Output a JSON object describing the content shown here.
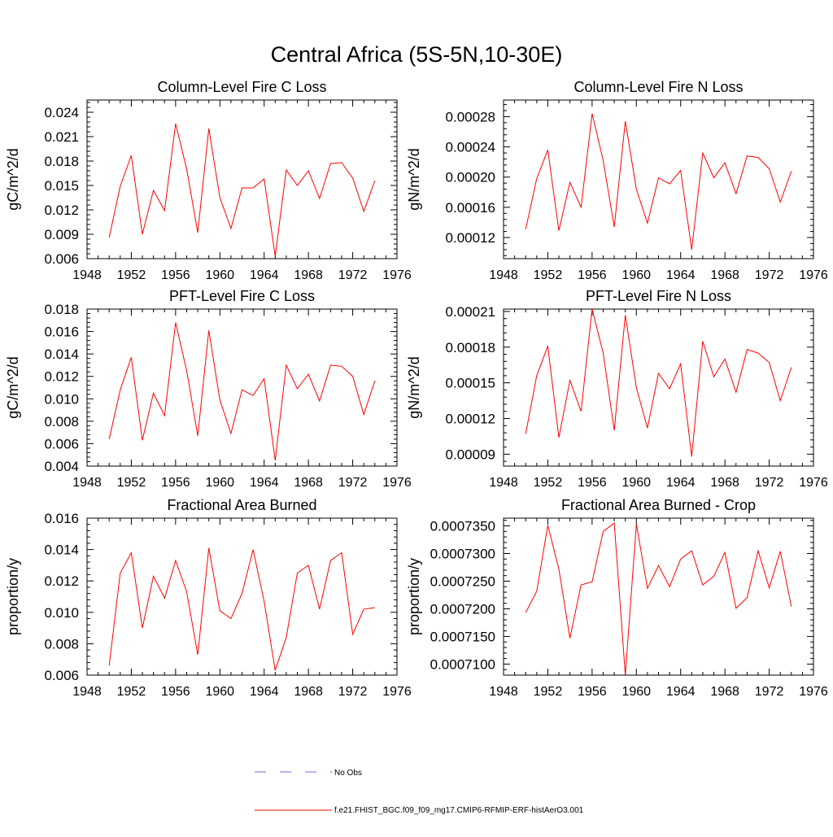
{
  "figure_title": "Central Africa (5S-5N,10-30E)",
  "line_color": "#ff0000",
  "legend": {
    "no_obs_label": "No Obs",
    "no_obs_color": "#6b6bd6",
    "model_label": "f.e21.FHIST_BGC.f09_f09_mg17.CMIP6-RFMIP-ERF-histAerO3.001",
    "model_color": "#ff0000"
  },
  "chart_data": [
    {
      "type": "line",
      "title": "Column-Level Fire C Loss",
      "ylabel": "gC/m^2/d",
      "xlim": [
        1948,
        1976
      ],
      "xticks": [
        "1948",
        "1952",
        "1956",
        "1960",
        "1964",
        "1968",
        "1972",
        "1976"
      ],
      "ylim": [
        0.006,
        0.0255
      ],
      "yticks": [
        "0.006",
        "0.009",
        "0.012",
        "0.015",
        "0.018",
        "0.021",
        "0.024"
      ],
      "x": [
        1950,
        1951,
        1952,
        1953,
        1954,
        1955,
        1956,
        1957,
        1958,
        1959,
        1960,
        1961,
        1962,
        1963,
        1964,
        1965,
        1966,
        1967,
        1968,
        1969,
        1970,
        1971,
        1972,
        1973,
        1974
      ],
      "series": [
        {
          "values": [
            0.0086,
            0.0149,
            0.0187,
            0.009,
            0.0144,
            0.0119,
            0.0226,
            0.017,
            0.0092,
            0.022,
            0.0135,
            0.0097,
            0.0147,
            0.0147,
            0.0158,
            0.0063,
            0.0169,
            0.015,
            0.0168,
            0.0134,
            0.0177,
            0.0178,
            0.0159,
            0.0118,
            0.0156
          ]
        }
      ]
    },
    {
      "type": "line",
      "title": "Column-Level Fire N Loss",
      "ylabel": "gN/m^2/d",
      "xlim": [
        1948,
        1976
      ],
      "xticks": [
        "1948",
        "1952",
        "1956",
        "1960",
        "1964",
        "1968",
        "1972",
        "1976"
      ],
      "ylim": [
        9.2e-05,
        0.000302
      ],
      "yticks": [
        "0.00012",
        "0.00016",
        "0.00020",
        "0.00024",
        "0.00028"
      ],
      "x": [
        1950,
        1951,
        1952,
        1953,
        1954,
        1955,
        1956,
        1957,
        1958,
        1959,
        1960,
        1961,
        1962,
        1963,
        1964,
        1965,
        1966,
        1967,
        1968,
        1969,
        1970,
        1971,
        1972,
        1973,
        1974
      ],
      "series": [
        {
          "values": [
            0.000131,
            0.000198,
            0.000236,
            0.000129,
            0.000193,
            0.00016,
            0.000284,
            0.000222,
            0.000134,
            0.000274,
            0.000184,
            0.000139,
            0.000199,
            0.000191,
            0.000209,
            0.000104,
            0.000232,
            0.000199,
            0.000219,
            0.000178,
            0.000228,
            0.000226,
            0.000211,
            0.000167,
            0.000208
          ]
        }
      ]
    },
    {
      "type": "line",
      "title": "PFT-Level Fire C Loss",
      "ylabel": "gC/m^2/d",
      "xlim": [
        1948,
        1976
      ],
      "xticks": [
        "1948",
        "1952",
        "1956",
        "1960",
        "1964",
        "1968",
        "1972",
        "1976"
      ],
      "ylim": [
        0.004,
        0.018
      ],
      "yticks": [
        "0.004",
        "0.006",
        "0.008",
        "0.010",
        "0.012",
        "0.014",
        "0.016",
        "0.018"
      ],
      "x": [
        1950,
        1951,
        1952,
        1953,
        1954,
        1955,
        1956,
        1957,
        1958,
        1959,
        1960,
        1961,
        1962,
        1963,
        1964,
        1965,
        1966,
        1967,
        1968,
        1969,
        1970,
        1971,
        1972,
        1973,
        1974
      ],
      "series": [
        {
          "values": [
            0.0064,
            0.0108,
            0.0137,
            0.0063,
            0.0105,
            0.0085,
            0.0168,
            0.0125,
            0.0067,
            0.0161,
            0.0099,
            0.0069,
            0.0108,
            0.0103,
            0.0118,
            0.0045,
            0.013,
            0.0109,
            0.0122,
            0.0098,
            0.013,
            0.0129,
            0.012,
            0.0086,
            0.0116
          ]
        }
      ]
    },
    {
      "type": "line",
      "title": "PFT-Level Fire N Loss",
      "ylabel": "gN/m^2/d",
      "xlim": [
        1948,
        1976
      ],
      "xticks": [
        "1948",
        "1952",
        "1956",
        "1960",
        "1964",
        "1968",
        "1972",
        "1976"
      ],
      "ylim": [
        8e-05,
        0.000212
      ],
      "yticks": [
        "0.00009",
        "0.00012",
        "0.00015",
        "0.00018",
        "0.00021"
      ],
      "x": [
        1950,
        1951,
        1952,
        1953,
        1954,
        1955,
        1956,
        1957,
        1958,
        1959,
        1960,
        1961,
        1962,
        1963,
        1964,
        1965,
        1966,
        1967,
        1968,
        1969,
        1970,
        1971,
        1972,
        1973,
        1974
      ],
      "series": [
        {
          "values": [
            0.000107,
            0.000156,
            0.000181,
            0.000104,
            0.000152,
            0.000126,
            0.000212,
            0.000175,
            0.00011,
            0.000207,
            0.000146,
            0.000112,
            0.000158,
            0.000145,
            0.000166,
            8.8e-05,
            0.000185,
            0.000155,
            0.00017,
            0.000142,
            0.000178,
            0.000175,
            0.000167,
            0.000135,
            0.000163
          ]
        }
      ]
    },
    {
      "type": "line",
      "title": "Fractional Area Burned",
      "ylabel": "proportion/y",
      "xlim": [
        1948,
        1976
      ],
      "xticks": [
        "1948",
        "1952",
        "1956",
        "1960",
        "1964",
        "1968",
        "1972",
        "1976"
      ],
      "ylim": [
        0.006,
        0.016
      ],
      "yticks": [
        "0.006",
        "0.008",
        "0.010",
        "0.012",
        "0.014",
        "0.016"
      ],
      "x": [
        1950,
        1951,
        1952,
        1953,
        1954,
        1955,
        1956,
        1957,
        1958,
        1959,
        1960,
        1961,
        1962,
        1963,
        1964,
        1965,
        1966,
        1967,
        1968,
        1969,
        1970,
        1971,
        1972,
        1973,
        1974
      ],
      "series": [
        {
          "values": [
            0.0066,
            0.0125,
            0.0138,
            0.009,
            0.0123,
            0.0109,
            0.0133,
            0.0113,
            0.0073,
            0.0141,
            0.0101,
            0.0096,
            0.0112,
            0.014,
            0.0107,
            0.0063,
            0.0084,
            0.0125,
            0.013,
            0.0102,
            0.0133,
            0.0138,
            0.0086,
            0.0102,
            0.0103
          ]
        }
      ]
    },
    {
      "type": "line",
      "title": "Fractional Area Burned - Crop",
      "ylabel": "proportion/y",
      "xlim": [
        1948,
        1976
      ],
      "xticks": [
        "1948",
        "1952",
        "1956",
        "1960",
        "1964",
        "1968",
        "1972",
        "1976"
      ],
      "ylim": [
        0.000708,
        0.0007364
      ],
      "yticks": [
        "0.0007100",
        "0.0007150",
        "0.0007200",
        "0.0007250",
        "0.0007300",
        "0.0007350"
      ],
      "x": [
        1950,
        1951,
        1952,
        1953,
        1954,
        1955,
        1956,
        1957,
        1958,
        1959,
        1960,
        1961,
        1962,
        1963,
        1964,
        1965,
        1966,
        1967,
        1968,
        1969,
        1970,
        1971,
        1972,
        1973,
        1974
      ],
      "series": [
        {
          "values": [
            0.0007193,
            0.0007232,
            0.0007351,
            0.0007272,
            0.0007147,
            0.0007243,
            0.0007249,
            0.000734,
            0.0007355,
            0.000708,
            0.0007353,
            0.0007237,
            0.0007278,
            0.000724,
            0.000729,
            0.0007305,
            0.0007243,
            0.0007259,
            0.0007302,
            0.0007201,
            0.000722,
            0.0007305,
            0.0007238,
            0.0007304,
            0.0007204
          ]
        }
      ]
    }
  ]
}
